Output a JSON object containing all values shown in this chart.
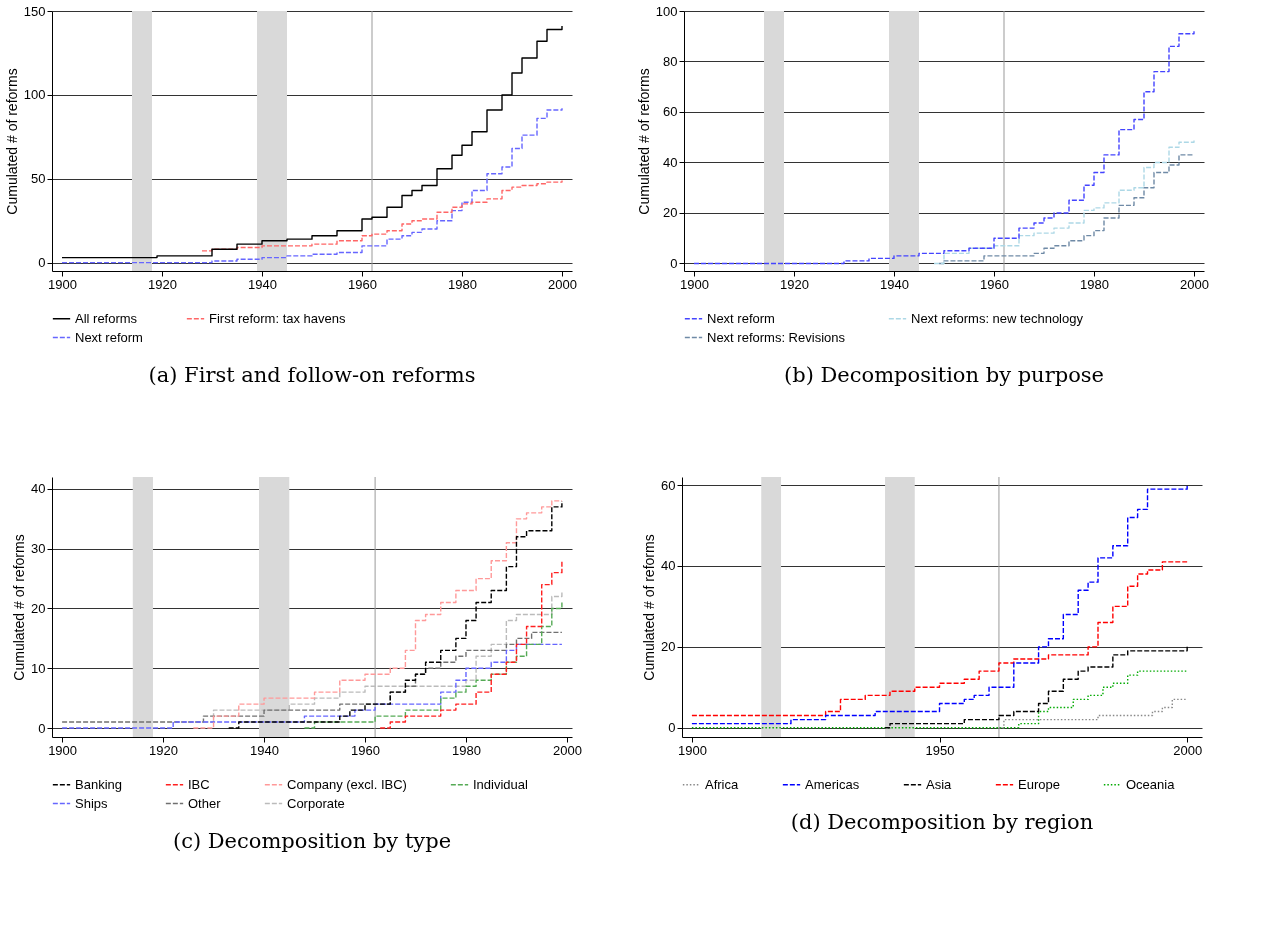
{
  "chart_data": [
    {
      "type": "step",
      "title": "(a) First and follow-on reforms",
      "ylabel": "Cumulated # of reforms",
      "xlim": [
        1898,
        2002
      ],
      "xticks": [
        1900,
        1920,
        1940,
        1960,
        1980,
        2000
      ],
      "ylim": [
        -5,
        150
      ],
      "yticks": [
        0,
        50,
        100,
        150
      ],
      "grid": "y",
      "legend": "bottom",
      "bands": [
        {
          "axis": "x",
          "from": 1914,
          "to": 1918,
          "color": "#d9d9d9"
        },
        {
          "axis": "x",
          "from": 1939,
          "to": 1945,
          "color": "#d9d9d9"
        }
      ],
      "ref_lines": [
        {
          "axis": "x",
          "value": 1962,
          "color": "#999999"
        }
      ],
      "series": [
        {
          "name": "All reforms",
          "color": "#000000",
          "line_style": "solid",
          "x": [
            1900,
            1910,
            1918,
            1919,
            1925,
            1930,
            1935,
            1940,
            1945,
            1950,
            1955,
            1960,
            1962,
            1965,
            1968,
            1970,
            1972,
            1975,
            1978,
            1980,
            1982,
            1985,
            1988,
            1990,
            1992,
            1995,
            1997,
            2000
          ],
          "values": [
            3,
            3,
            3,
            4,
            4,
            8,
            11,
            13,
            14,
            16,
            19,
            26,
            27,
            33,
            40,
            43,
            46,
            56,
            64,
            70,
            78,
            91,
            100,
            113,
            122,
            132,
            139,
            141
          ]
        },
        {
          "name": "First reform: tax havens",
          "color": "#ff6666",
          "line_style": "dashed",
          "x": [
            1928,
            1930,
            1935,
            1940,
            1945,
            1950,
            1955,
            1960,
            1962,
            1965,
            1968,
            1970,
            1972,
            1975,
            1978,
            1980,
            1982,
            1985,
            1988,
            1990,
            1992,
            1995,
            1997,
            2000
          ],
          "values": [
            7,
            8,
            9,
            10,
            10,
            11,
            13,
            16,
            17,
            19,
            23,
            25,
            26,
            30,
            33,
            35,
            36,
            38,
            43,
            45,
            46,
            47,
            48,
            49
          ]
        },
        {
          "name": "Next reform",
          "color": "#6666ff",
          "line_style": "dashed",
          "x": [
            1900,
            1910,
            1920,
            1925,
            1930,
            1935,
            1940,
            1945,
            1950,
            1955,
            1960,
            1962,
            1965,
            1968,
            1970,
            1972,
            1975,
            1978,
            1980,
            1982,
            1985,
            1988,
            1990,
            1992,
            1995,
            1997,
            2000
          ],
          "values": [
            0,
            0,
            0,
            0,
            1,
            2,
            3,
            4,
            5,
            6,
            10,
            10,
            14,
            16,
            18,
            20,
            25,
            31,
            36,
            43,
            53,
            57,
            68,
            76,
            86,
            91,
            92
          ]
        }
      ]
    },
    {
      "type": "step",
      "title": "(b) Decomposition by purpose",
      "ylabel": "Cumulated # of reforms",
      "xlim": [
        1898,
        2002
      ],
      "xticks": [
        1900,
        1920,
        1940,
        1960,
        1980,
        2000
      ],
      "ylim": [
        -3,
        100
      ],
      "yticks": [
        0,
        20,
        40,
        60,
        80,
        100
      ],
      "grid": "y",
      "legend": "bottom",
      "bands": [
        {
          "axis": "x",
          "from": 1914,
          "to": 1918,
          "color": "#d9d9d9"
        },
        {
          "axis": "x",
          "from": 1939,
          "to": 1945,
          "color": "#d9d9d9"
        }
      ],
      "ref_lines": [
        {
          "axis": "x",
          "value": 1962,
          "color": "#999999"
        }
      ],
      "series": [
        {
          "name": "Next reform",
          "color": "#4444ff",
          "line_style": "dashed",
          "x": [
            1900,
            1910,
            1920,
            1925,
            1930,
            1935,
            1940,
            1945,
            1950,
            1955,
            1960,
            1962,
            1965,
            1968,
            1970,
            1972,
            1975,
            1978,
            1980,
            1982,
            1985,
            1988,
            1990,
            1992,
            1995,
            1997,
            2000
          ],
          "values": [
            0,
            0,
            0,
            0,
            1,
            2,
            3,
            4,
            5,
            6,
            10,
            10,
            14,
            16,
            18,
            20,
            25,
            31,
            36,
            43,
            53,
            57,
            68,
            76,
            86,
            91,
            92
          ]
        },
        {
          "name": "Next reforms: new technology",
          "color": "#add8e6",
          "line_style": "dashed",
          "x": [
            1948,
            1950,
            1955,
            1960,
            1962,
            1965,
            1968,
            1970,
            1972,
            1975,
            1978,
            1980,
            1982,
            1985,
            1988,
            1990,
            1992,
            1995,
            1997,
            2000
          ],
          "values": [
            0,
            4,
            6,
            7,
            7,
            11,
            12,
            12,
            14,
            16,
            21,
            22,
            24,
            29,
            30,
            38,
            40,
            46,
            48,
            49
          ]
        },
        {
          "name": "Next reforms: Revisions",
          "color": "#6f8aa6",
          "line_style": "dashed",
          "x": [
            1949,
            1950,
            1955,
            1958,
            1962,
            1965,
            1968,
            1970,
            1972,
            1975,
            1978,
            1980,
            1982,
            1985,
            1988,
            1990,
            1992,
            1995,
            1997,
            2000
          ],
          "values": [
            0,
            1,
            1,
            3,
            3,
            3,
            4,
            6,
            7,
            9,
            11,
            13,
            18,
            23,
            26,
            30,
            36,
            39,
            43,
            43
          ]
        }
      ]
    },
    {
      "type": "step",
      "title": "(c) Decomposition by type",
      "ylabel": "Cumulated # of reforms",
      "xlim": [
        1898,
        2001
      ],
      "xticks": [
        1900,
        1920,
        1940,
        1960,
        1980,
        2000
      ],
      "ylim": [
        -1.5,
        42
      ],
      "yticks": [
        0,
        10,
        20,
        30,
        40
      ],
      "grid": "y",
      "legend": "bottom",
      "bands": [
        {
          "axis": "x",
          "from": 1914,
          "to": 1918,
          "color": "#d9d9d9"
        },
        {
          "axis": "x",
          "from": 1939,
          "to": 1945,
          "color": "#d9d9d9"
        }
      ],
      "ref_lines": [
        {
          "axis": "x",
          "value": 1962,
          "color": "#999999"
        }
      ],
      "series": [
        {
          "name": "Banking",
          "color": "#000000",
          "line_style": "dashed",
          "x": [
            1933,
            1935,
            1945,
            1950,
            1955,
            1957,
            1960,
            1962,
            1965,
            1968,
            1970,
            1972,
            1975,
            1978,
            1980,
            1982,
            1985,
            1988,
            1990,
            1992,
            1995,
            1997,
            1999
          ],
          "values": [
            0,
            1,
            1,
            1,
            2,
            3,
            4,
            4,
            6,
            8,
            9,
            11,
            13,
            15,
            18,
            21,
            23,
            27,
            32,
            33,
            33,
            37,
            38
          ]
        },
        {
          "name": "IBC",
          "color": "#ff2020",
          "line_style": "dashed",
          "x": [
            1963,
            1965,
            1968,
            1970,
            1972,
            1975,
            1978,
            1980,
            1982,
            1985,
            1988,
            1990,
            1992,
            1995,
            1997,
            1999
          ],
          "values": [
            0,
            1,
            2,
            2,
            2,
            3,
            4,
            4,
            6,
            9,
            11,
            14,
            17,
            24,
            26,
            28
          ]
        },
        {
          "name": "Company (excl. IBC)",
          "color": "#ff9999",
          "line_style": "dashed",
          "x": [
            1926,
            1930,
            1935,
            1940,
            1945,
            1950,
            1955,
            1960,
            1962,
            1965,
            1968,
            1970,
            1972,
            1975,
            1978,
            1980,
            1982,
            1985,
            1988,
            1990,
            1992,
            1995,
            1997,
            1999
          ],
          "values": [
            0,
            2,
            4,
            5,
            5,
            6,
            8,
            9,
            9,
            10,
            13,
            18,
            19,
            21,
            23,
            23,
            25,
            28,
            31,
            35,
            36,
            37,
            38,
            38
          ]
        },
        {
          "name": "Individual",
          "color": "#55aa55",
          "line_style": "dashed",
          "x": [
            1948,
            1950,
            1955,
            1960,
            1962,
            1965,
            1968,
            1970,
            1972,
            1975,
            1978,
            1980,
            1982,
            1985,
            1988,
            1990,
            1992,
            1995,
            1997,
            1999
          ],
          "values": [
            0,
            1,
            1,
            1,
            2,
            2,
            3,
            3,
            3,
            5,
            6,
            7,
            8,
            9,
            11,
            12,
            14,
            17,
            20,
            21
          ]
        },
        {
          "name": "Ships",
          "color": "#6666ff",
          "line_style": "dashed",
          "x": [
            1900,
            1910,
            1920,
            1922,
            1945,
            1948,
            1955,
            1958,
            1960,
            1962,
            1965,
            1970,
            1972,
            1975,
            1978,
            1980,
            1982,
            1985,
            1988,
            1990,
            1999
          ],
          "values": [
            0,
            0,
            0,
            1,
            1,
            2,
            2,
            3,
            3,
            4,
            4,
            4,
            4,
            6,
            8,
            10,
            10,
            11,
            13,
            14,
            14
          ]
        },
        {
          "name": "Other",
          "color": "#707070",
          "line_style": "dashed",
          "x": [
            1900,
            1910,
            1926,
            1928,
            1935,
            1940,
            1945,
            1950,
            1955,
            1960,
            1962,
            1965,
            1968,
            1970,
            1972,
            1975,
            1978,
            1980,
            1985,
            1988,
            1990,
            1993,
            1999
          ],
          "values": [
            1,
            1,
            1,
            2,
            2,
            3,
            3,
            3,
            4,
            4,
            4,
            6,
            7,
            9,
            10,
            11,
            12,
            13,
            13,
            14,
            15,
            16,
            16
          ]
        },
        {
          "name": "Corporate",
          "color": "#bbbbbb",
          "line_style": "dashed",
          "x": [
            1928,
            1930,
            1935,
            1940,
            1945,
            1950,
            1955,
            1960,
            1962,
            1965,
            1970,
            1975,
            1978,
            1980,
            1982,
            1985,
            1988,
            1990,
            1992,
            1995,
            1997,
            1999
          ],
          "values": [
            1,
            3,
            3,
            3,
            4,
            5,
            6,
            7,
            7,
            7,
            7,
            7,
            7,
            8,
            12,
            14,
            18,
            19,
            19,
            19,
            22,
            23
          ]
        }
      ]
    },
    {
      "type": "step",
      "title": "(d) Decomposition by region",
      "ylabel": "Cumulated # of reforms",
      "xlim": [
        1898,
        2003
      ],
      "xticks": [
        1900,
        1950,
        2000
      ],
      "ylim": [
        -2.3,
        62
      ],
      "yticks": [
        0,
        20,
        40,
        60
      ],
      "grid": "y",
      "legend": "bottom",
      "bands": [
        {
          "axis": "x",
          "from": 1914,
          "to": 1918,
          "color": "#d9d9d9"
        },
        {
          "axis": "x",
          "from": 1939,
          "to": 1945,
          "color": "#d9d9d9"
        }
      ],
      "ref_lines": [
        {
          "axis": "x",
          "value": 1962,
          "color": "#999999"
        }
      ],
      "series": [
        {
          "name": "Africa",
          "color": "#888888",
          "line_style": "dotted",
          "x": [
            1962,
            1963,
            1980,
            1982,
            1990,
            1993,
            1995,
            1997,
            2000
          ],
          "values": [
            0,
            2,
            2,
            3,
            3,
            4,
            5,
            7,
            7
          ]
        },
        {
          "name": "Americas",
          "color": "#0000ff",
          "line_style": "dashed",
          "x": [
            1900,
            1910,
            1919,
            1920,
            1925,
            1927,
            1935,
            1937,
            1948,
            1950,
            1955,
            1957,
            1960,
            1962,
            1965,
            1970,
            1972,
            1975,
            1978,
            1980,
            1982,
            1985,
            1988,
            1990,
            1992,
            1995,
            2000
          ],
          "values": [
            1,
            1,
            1,
            2,
            2,
            3,
            3,
            4,
            4,
            6,
            7,
            8,
            10,
            10,
            16,
            20,
            22,
            28,
            34,
            36,
            42,
            45,
            52,
            54,
            59,
            59,
            60
          ]
        },
        {
          "name": "Asia",
          "color": "#000000",
          "line_style": "dashed",
          "x": [
            1939,
            1940,
            1950,
            1955,
            1960,
            1962,
            1965,
            1968,
            1970,
            1972,
            1975,
            1978,
            1980,
            1983,
            1985,
            1988,
            1995,
            2000
          ],
          "values": [
            0,
            1,
            1,
            2,
            2,
            3,
            4,
            4,
            6,
            9,
            12,
            14,
            15,
            15,
            18,
            19,
            19,
            20
          ]
        },
        {
          "name": "Europe",
          "color": "#ff0000",
          "line_style": "dashed",
          "x": [
            1900,
            1910,
            1925,
            1927,
            1930,
            1935,
            1940,
            1945,
            1950,
            1955,
            1958,
            1962,
            1965,
            1970,
            1972,
            1977,
            1980,
            1982,
            1985,
            1988,
            1990,
            1992,
            1995,
            2000
          ],
          "values": [
            3,
            3,
            3,
            4,
            7,
            8,
            9,
            10,
            11,
            12,
            14,
            16,
            17,
            17,
            18,
            18,
            20,
            26,
            30,
            35,
            38,
            39,
            41,
            41
          ]
        },
        {
          "name": "Oceania",
          "color": "#00aa00",
          "line_style": "dotted",
          "x": [
            1900,
            1940,
            1965,
            1966,
            1970,
            1972,
            1975,
            1977,
            1980,
            1983,
            1985,
            1988,
            1990,
            2000
          ],
          "values": [
            0,
            0,
            0,
            1,
            4,
            5,
            5,
            7,
            8,
            10,
            11,
            13,
            14,
            14
          ]
        }
      ]
    }
  ]
}
